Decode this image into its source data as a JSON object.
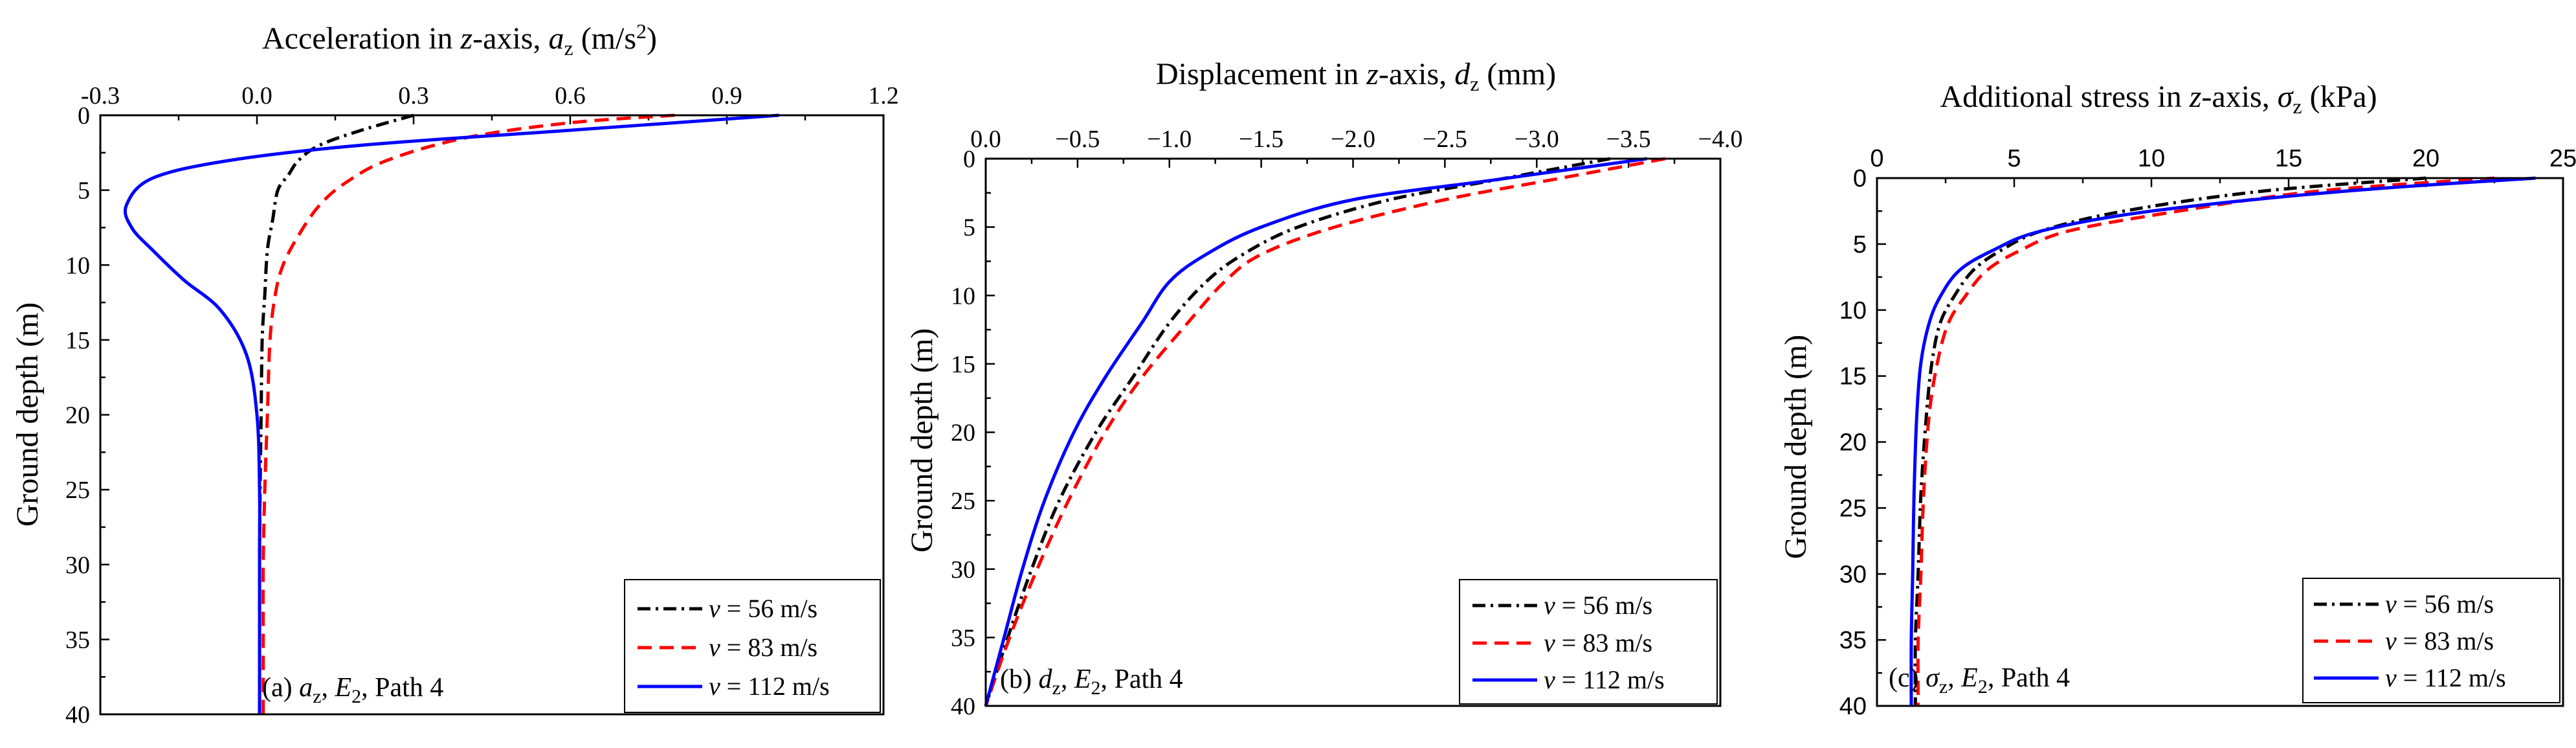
{
  "colors": {
    "black": "#000000",
    "red": "#ff0000",
    "blue": "#0000ff"
  },
  "legend": [
    {
      "v_symbol": "v",
      "eq": " = 56 m/s",
      "color": "#000000",
      "dash": "dashdot"
    },
    {
      "v_symbol": "v",
      "eq": " = 83 m/s",
      "color": "#ff0000",
      "dash": "dash"
    },
    {
      "v_symbol": "v",
      "eq": " = 112 m/s",
      "color": "#0000ff",
      "dash": "solid"
    }
  ],
  "ylabel": "Ground depth (m)",
  "chart_data": [
    {
      "type": "line",
      "id": "a",
      "title": "Acceleration in z-axis, a_z (m/s²)",
      "title_parts": {
        "pre": "Acceleration in ",
        "z": "z",
        "mid": "-axis, ",
        "sym": "a",
        "sub": "z",
        "post": " (m/s",
        "sup": "2",
        "end": ")"
      },
      "xlim": [
        -0.3,
        1.2
      ],
      "xticks": [
        -0.3,
        0.0,
        0.3,
        0.6,
        0.9,
        1.2
      ],
      "xtick_labels": [
        "-0.3",
        "0.0",
        "0.3",
        "0.6",
        "0.9",
        "1.2"
      ],
      "ylim": [
        0,
        40
      ],
      "yticks": [
        0,
        5,
        10,
        15,
        20,
        25,
        30,
        35,
        40
      ],
      "ytick_labels": [
        "0",
        "5",
        "10",
        "15",
        "20",
        "25",
        "30",
        "35",
        "40"
      ],
      "panel_label": {
        "pre": "(a) ",
        "sym": "a",
        "sub": "z",
        "mid": ", ",
        "E": "E",
        "Esub": "2",
        "post": ", Path 4"
      },
      "series": [
        {
          "name": "v = 56 m/s",
          "x": [
            0.3,
            0.2,
            0.12,
            0.08,
            0.06,
            0.04,
            0.03,
            0.02,
            0.015,
            0.01,
            0.008,
            0.006,
            0.005,
            0.005,
            0.005
          ],
          "y": [
            0,
            1,
            2,
            3,
            4,
            5,
            7,
            9,
            12,
            15,
            20,
            25,
            30,
            35,
            40
          ]
        },
        {
          "name": "v = 83 m/s",
          "x": [
            0.8,
            0.6,
            0.4,
            0.25,
            0.17,
            0.12,
            0.08,
            0.05,
            0.035,
            0.025,
            0.02,
            0.015,
            0.012,
            0.012,
            0.012
          ],
          "y": [
            0,
            0.5,
            1.5,
            3,
            4.5,
            6,
            8,
            10,
            12,
            15,
            20,
            25,
            30,
            35,
            40
          ]
        },
        {
          "name": "v = 112 m/s",
          "x": [
            1.0,
            0.6,
            0.2,
            -0.05,
            -0.2,
            -0.25,
            -0.24,
            -0.2,
            -0.14,
            -0.07,
            -0.02,
            0.0,
            0.005,
            0.005,
            0.005
          ],
          "y": [
            0,
            1,
            2,
            3,
            4.2,
            6,
            7.5,
            9,
            11,
            13,
            16,
            20,
            25,
            30,
            40
          ]
        }
      ]
    },
    {
      "type": "line",
      "id": "b",
      "title": "Displacement in z-axis, d_z (mm)",
      "title_parts": {
        "pre": "Displacement in ",
        "z": "z",
        "mid": "-axis, ",
        "sym": "d",
        "sub": "z",
        "post": " (mm)"
      },
      "xlim": [
        0.0,
        -4.0
      ],
      "xticks": [
        0.0,
        -0.5,
        -1.0,
        -1.5,
        -2.0,
        -2.5,
        -3.0,
        -3.5,
        -4.0
      ],
      "xtick_labels": [
        "0.0",
        "−0.5",
        "−1.0",
        "−1.5",
        "−2.0",
        "−2.5",
        "−3.0",
        "−3.5",
        "−4.0"
      ],
      "ylim": [
        0,
        40
      ],
      "yticks": [
        0,
        5,
        10,
        15,
        20,
        25,
        30,
        35,
        40
      ],
      "ytick_labels": [
        "0",
        "5",
        "10",
        "15",
        "20",
        "25",
        "30",
        "35",
        "40"
      ],
      "panel_label": {
        "pre": "(b) ",
        "sym": "d",
        "sub": "z",
        "mid": ", ",
        "E": "E",
        "Esub": "2",
        "post": ", Path 4"
      },
      "series": [
        {
          "name": "v = 56 m/s",
          "x": [
            -3.4,
            -2.8,
            -2.2,
            -1.7,
            -1.4,
            -1.2,
            -1.0,
            -0.8,
            -0.6,
            -0.4,
            -0.25,
            -0.12,
            0.0
          ],
          "y": [
            0,
            1.5,
            3,
            5,
            7,
            9,
            12,
            16,
            20,
            25,
            30,
            35,
            40
          ]
        },
        {
          "name": "v = 83 m/s",
          "x": [
            -3.7,
            -3.1,
            -2.5,
            -1.9,
            -1.5,
            -1.3,
            -1.1,
            -0.85,
            -0.65,
            -0.45,
            -0.28,
            -0.13,
            0.0
          ],
          "y": [
            0,
            1.5,
            3,
            5,
            7,
            9,
            12,
            16,
            20,
            25,
            30,
            35,
            40
          ]
        },
        {
          "name": "v = 112 m/s",
          "x": [
            -3.6,
            -2.8,
            -2.0,
            -1.5,
            -1.2,
            -1.0,
            -0.85,
            -0.65,
            -0.48,
            -0.32,
            -0.2,
            -0.1,
            0.0
          ],
          "y": [
            0,
            1.5,
            3,
            5,
            7,
            9,
            12,
            16,
            20,
            25,
            30,
            35,
            40
          ]
        }
      ]
    },
    {
      "type": "line",
      "id": "c",
      "title": "Additional stress in z-axis, σ_z (kPa)",
      "title_parts": {
        "pre": "Additional stress in ",
        "z": "z",
        "mid": "-axis, ",
        "sym": "σ",
        "sub": "z",
        "post": " (kPa)"
      },
      "xlim": [
        0,
        25
      ],
      "xticks": [
        0,
        5,
        10,
        15,
        20,
        25
      ],
      "xtick_labels": [
        "0",
        "5",
        "10",
        "15",
        "20",
        "25"
      ],
      "ylim": [
        0,
        40
      ],
      "yticks": [
        0,
        5,
        10,
        15,
        20,
        25,
        30,
        35,
        40
      ],
      "ytick_labels": [
        "0",
        "5",
        "10",
        "15",
        "20",
        "25",
        "30",
        "35",
        "40"
      ],
      "panel_label": {
        "pre": "(c) ",
        "sym": "σ",
        "sub": "z",
        "mid": ", ",
        "E": "E",
        "Esub": "2",
        "post": ", Path 4"
      },
      "series": [
        {
          "name": "v = 56 m/s",
          "x": [
            20,
            14,
            9,
            6,
            4.5,
            3.5,
            2.8,
            2.3,
            2.0,
            1.8,
            1.6,
            1.5,
            1.4,
            1.4
          ],
          "y": [
            0,
            1,
            2.5,
            4,
            5.5,
            7,
            9,
            11,
            14,
            18,
            24,
            30,
            35,
            40
          ]
        },
        {
          "name": "v = 83 m/s",
          "x": [
            22.5,
            16,
            11,
            7,
            5.2,
            4.0,
            3.2,
            2.6,
            2.2,
            1.9,
            1.7,
            1.6,
            1.5,
            1.5
          ],
          "y": [
            0,
            1,
            2.5,
            4,
            5.5,
            7,
            9,
            11,
            14,
            18,
            24,
            30,
            35,
            40
          ]
        },
        {
          "name": "v = 112 m/s",
          "x": [
            24,
            17,
            10,
            6,
            4.2,
            3.0,
            2.3,
            1.9,
            1.6,
            1.45,
            1.35,
            1.3,
            1.25,
            1.25
          ],
          "y": [
            0,
            1,
            2.5,
            4,
            5.5,
            7,
            9,
            11,
            14,
            18,
            24,
            30,
            35,
            40
          ]
        }
      ]
    }
  ]
}
